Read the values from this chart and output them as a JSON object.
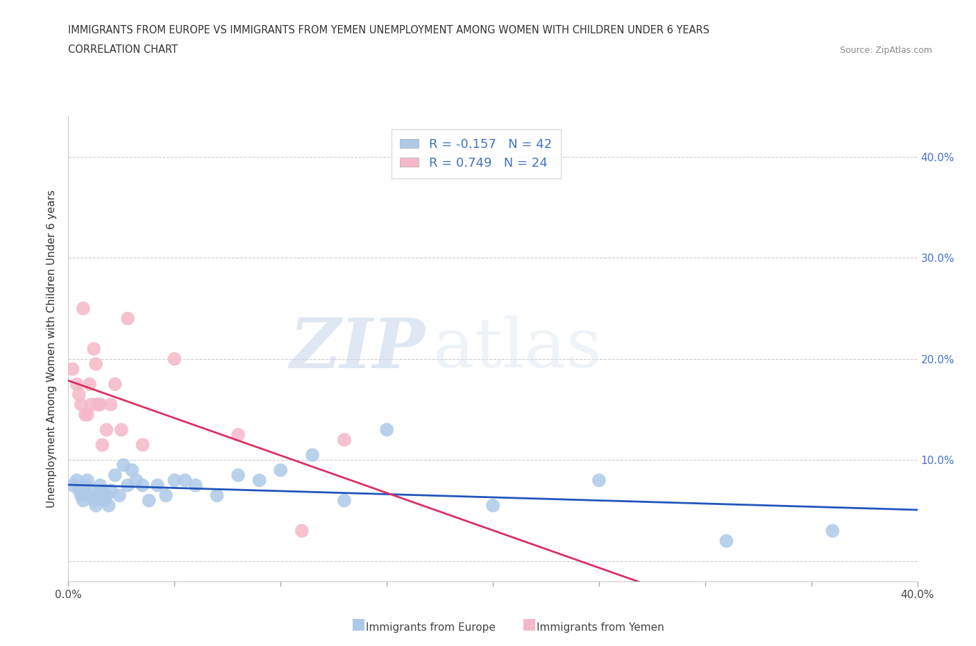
{
  "title_line1": "IMMIGRANTS FROM EUROPE VS IMMIGRANTS FROM YEMEN UNEMPLOYMENT AMONG WOMEN WITH CHILDREN UNDER 6 YEARS",
  "title_line2": "CORRELATION CHART",
  "source": "Source: ZipAtlas.com",
  "ylabel": "Unemployment Among Women with Children Under 6 years",
  "xlim": [
    0.0,
    0.4
  ],
  "ylim": [
    -0.02,
    0.44
  ],
  "xticks": [
    0.0,
    0.05,
    0.1,
    0.15,
    0.2,
    0.25,
    0.3,
    0.35,
    0.4
  ],
  "xtick_labels": [
    "0.0%",
    "",
    "",
    "",
    "",
    "",
    "",
    "",
    "40.0%"
  ],
  "yticks": [
    0.0,
    0.1,
    0.2,
    0.3,
    0.4
  ],
  "ytick_labels_right": [
    "",
    "10.0%",
    "20.0%",
    "30.0%",
    "40.0%"
  ],
  "europe_color": "#adc9e8",
  "europe_edge": "#adc9e8",
  "yemen_color": "#f5b8c8",
  "yemen_edge": "#f5b8c8",
  "line_europe_color": "#2255bb",
  "line_yemen_color": "#d93060",
  "R_europe": -0.157,
  "N_europe": 42,
  "R_yemen": 0.749,
  "N_yemen": 24,
  "watermark_zip": "ZIP",
  "watermark_atlas": "atlas",
  "europe_x": [
    0.002,
    0.004,
    0.005,
    0.006,
    0.007,
    0.008,
    0.009,
    0.01,
    0.011,
    0.012,
    0.013,
    0.014,
    0.015,
    0.016,
    0.017,
    0.018,
    0.019,
    0.02,
    0.022,
    0.024,
    0.026,
    0.028,
    0.03,
    0.032,
    0.035,
    0.038,
    0.042,
    0.046,
    0.05,
    0.055,
    0.06,
    0.07,
    0.08,
    0.09,
    0.1,
    0.115,
    0.13,
    0.15,
    0.2,
    0.25,
    0.31,
    0.36
  ],
  "europe_y": [
    0.075,
    0.08,
    0.07,
    0.065,
    0.06,
    0.075,
    0.08,
    0.065,
    0.07,
    0.06,
    0.055,
    0.065,
    0.075,
    0.07,
    0.06,
    0.065,
    0.055,
    0.07,
    0.085,
    0.065,
    0.095,
    0.075,
    0.09,
    0.08,
    0.075,
    0.06,
    0.075,
    0.065,
    0.08,
    0.08,
    0.075,
    0.065,
    0.085,
    0.08,
    0.09,
    0.105,
    0.06,
    0.13,
    0.055,
    0.08,
    0.02,
    0.03
  ],
  "yemen_x": [
    0.002,
    0.004,
    0.005,
    0.006,
    0.007,
    0.008,
    0.009,
    0.01,
    0.011,
    0.012,
    0.013,
    0.014,
    0.015,
    0.016,
    0.018,
    0.02,
    0.022,
    0.025,
    0.028,
    0.035,
    0.05,
    0.08,
    0.11,
    0.13
  ],
  "yemen_y": [
    0.19,
    0.175,
    0.165,
    0.155,
    0.25,
    0.145,
    0.145,
    0.175,
    0.155,
    0.21,
    0.195,
    0.155,
    0.155,
    0.115,
    0.13,
    0.155,
    0.175,
    0.13,
    0.24,
    0.115,
    0.2,
    0.125,
    0.03,
    0.12
  ]
}
